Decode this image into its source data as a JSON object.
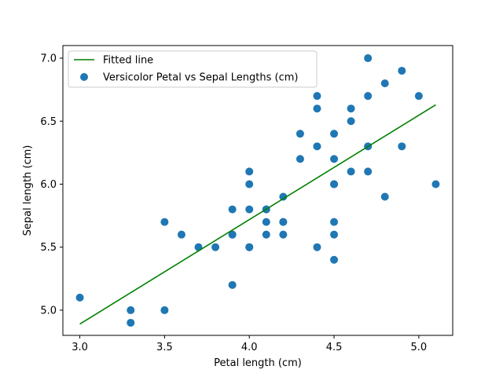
{
  "chart_data": {
    "type": "scatter",
    "title": "",
    "xlabel": "Petal length (cm)",
    "ylabel": "Sepal length (cm)",
    "xlim": [
      2.9,
      5.2
    ],
    "ylim": [
      4.8,
      7.1
    ],
    "xticks": [
      3.0,
      3.5,
      4.0,
      4.5,
      5.0
    ],
    "xtick_labels": [
      "3.0",
      "3.5",
      "4.0",
      "4.5",
      "5.0"
    ],
    "yticks": [
      5.0,
      5.5,
      6.0,
      6.5,
      7.0
    ],
    "ytick_labels": [
      "5.0",
      "5.5",
      "6.0",
      "6.5",
      "7.0"
    ],
    "grid": false,
    "legend_position": "top-left",
    "series": [
      {
        "name": "Versicolor Petal vs Sepal Lengths (cm)",
        "kind": "scatter",
        "color": "#1f77b4",
        "x": [
          3.0,
          3.3,
          3.3,
          3.5,
          3.5,
          3.6,
          3.7,
          3.8,
          3.9,
          3.9,
          3.9,
          3.9,
          4.0,
          4.0,
          4.0,
          4.0,
          4.0,
          4.1,
          4.1,
          4.1,
          4.1,
          4.2,
          4.2,
          4.2,
          4.2,
          4.3,
          4.3,
          4.4,
          4.4,
          4.4,
          4.4,
          4.5,
          4.5,
          4.5,
          4.5,
          4.5,
          4.5,
          4.5,
          4.6,
          4.6,
          4.6,
          4.7,
          4.7,
          4.7,
          4.7,
          4.8,
          4.8,
          4.9,
          4.9,
          5.0,
          5.1
        ],
        "y": [
          5.1,
          5.0,
          4.9,
          5.7,
          5.0,
          5.6,
          5.5,
          5.5,
          5.8,
          5.6,
          5.6,
          5.2,
          6.1,
          6.0,
          5.8,
          5.5,
          5.5,
          5.8,
          5.7,
          5.6,
          5.8,
          5.9,
          5.7,
          5.6,
          5.7,
          6.4,
          6.2,
          6.7,
          6.6,
          6.3,
          5.5,
          6.4,
          6.2,
          6.0,
          6.0,
          5.7,
          5.6,
          5.4,
          6.6,
          6.5,
          6.1,
          7.0,
          6.7,
          6.3,
          6.1,
          6.8,
          5.9,
          6.9,
          6.3,
          6.7,
          6.0
        ]
      },
      {
        "name": "Fitted line",
        "kind": "line",
        "color": "#008000",
        "x": [
          3.0,
          5.1
        ],
        "y": [
          4.89,
          6.63
        ]
      }
    ]
  }
}
